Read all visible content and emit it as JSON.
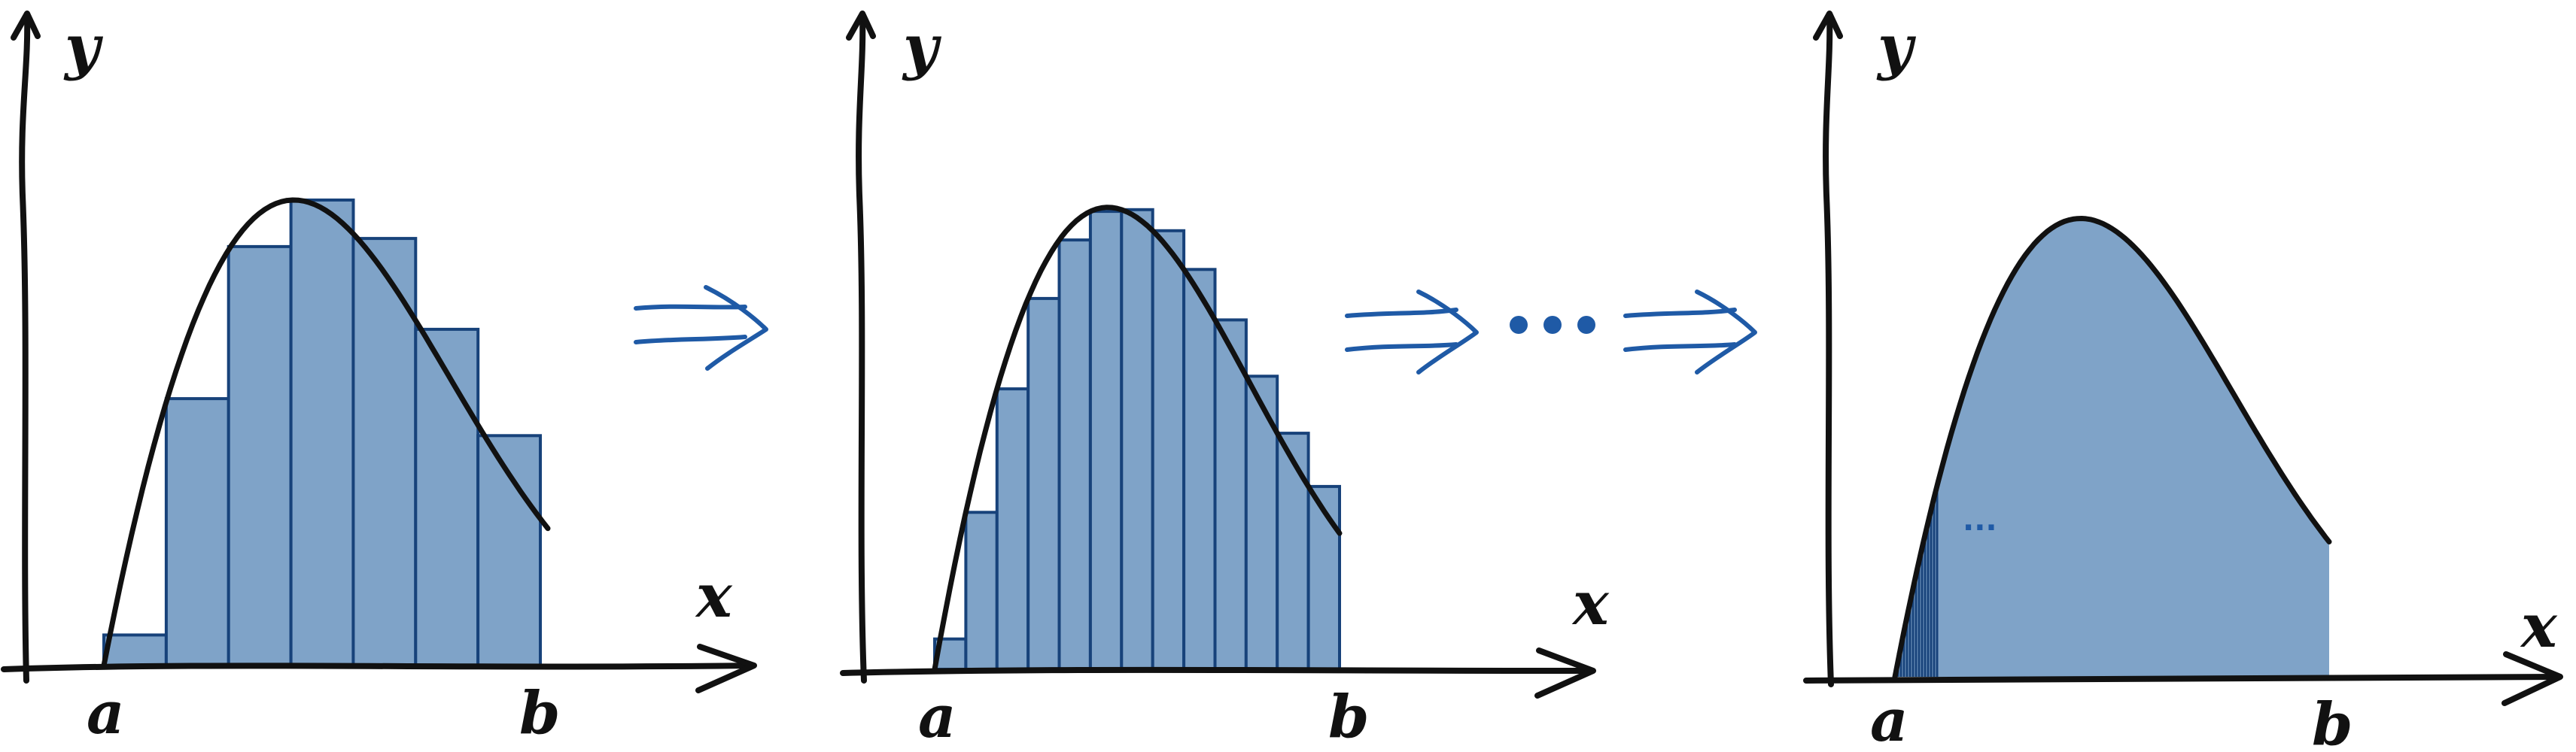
{
  "colors": {
    "fill": "#7fa3c8",
    "bar_stroke": "#17427a",
    "ink": "#111111",
    "arrow": "#1f5aa6",
    "dots": "#1f5aa6"
  },
  "panels": [
    {
      "y_label": "y",
      "x_label": "x",
      "a_label": "a",
      "b_label": "b",
      "rectangles": 7
    },
    {
      "y_label": "y",
      "x_label": "x",
      "a_label": "a",
      "b_label": "b",
      "rectangles": 13
    },
    {
      "y_label": "y",
      "x_label": "x",
      "a_label": "a",
      "b_label": "b",
      "inner_dots": "..."
    }
  ],
  "icons": {
    "arrow": "double-arrow-right-icon",
    "ellipsis": "ellipsis-dots-icon"
  }
}
